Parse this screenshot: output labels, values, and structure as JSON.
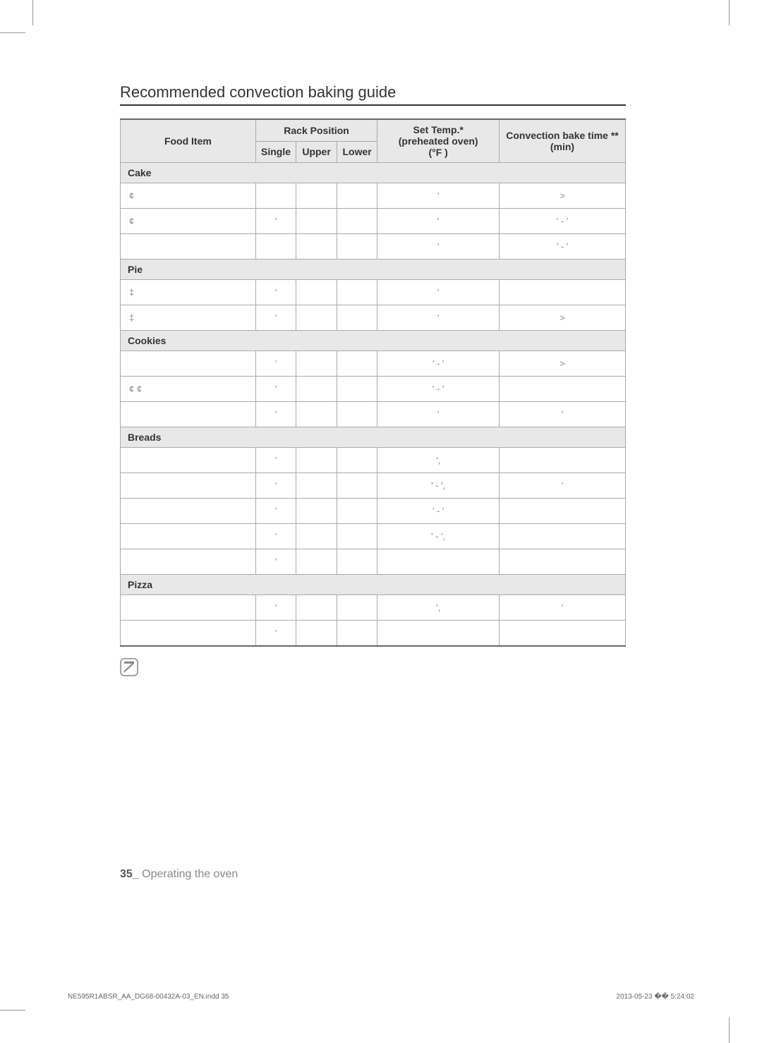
{
  "title": "Recommended convection baking guide",
  "headers": {
    "food": "Food Item",
    "rack": "Rack Position",
    "single": "Single",
    "upper": "Upper",
    "lower": "Lower",
    "temp": "Set Temp.*\n(preheated oven)\n(°F )",
    "time": "Convection bake time ** (min)"
  },
  "categories": [
    {
      "name": "Cake",
      "rows": [
        {
          "food": "¢",
          "single": "",
          "upper": "",
          "lower": "",
          "temp": "'",
          "time": ">"
        },
        {
          "food": "¢",
          "single": "'",
          "upper": "",
          "lower": "",
          "temp": "'",
          "time": "' - '"
        },
        {
          "food": "",
          "single": "",
          "upper": "",
          "lower": "",
          "temp": "'",
          "time": "' - '"
        }
      ]
    },
    {
      "name": "Pie",
      "rows": [
        {
          "food": "‡",
          "single": "'",
          "upper": "",
          "lower": "",
          "temp": "'",
          "time": ""
        },
        {
          "food": "‡",
          "single": "'",
          "upper": "",
          "lower": "",
          "temp": "'",
          "time": ">"
        }
      ]
    },
    {
      "name": "Cookies",
      "rows": [
        {
          "food": "",
          "single": "'",
          "upper": "",
          "lower": "",
          "temp": "' - '",
          "time": ">"
        },
        {
          "food": "¢    ¢",
          "single": "'",
          "upper": "",
          "lower": "",
          "temp": "' - '",
          "time": ""
        },
        {
          "food": "",
          "single": "'",
          "upper": "",
          "lower": "",
          "temp": "'",
          "time": "'"
        }
      ]
    },
    {
      "name": "Breads",
      "rows": [
        {
          "food": "",
          "single": "'",
          "upper": "",
          "lower": "",
          "temp": "',",
          "time": ""
        },
        {
          "food": "",
          "single": "'",
          "upper": "",
          "lower": "",
          "temp": "' - ',",
          "time": "'"
        },
        {
          "food": "",
          "single": "'",
          "upper": "",
          "lower": "",
          "temp": "' - '",
          "time": ""
        },
        {
          "food": "",
          "single": "'",
          "upper": "",
          "lower": "",
          "temp": "' - ',",
          "time": ""
        },
        {
          "food": "",
          "single": "'",
          "upper": "",
          "lower": "",
          "temp": "",
          "time": ""
        }
      ]
    },
    {
      "name": "Pizza",
      "rows": [
        {
          "food": "",
          "single": "'",
          "upper": "",
          "lower": "",
          "temp": "',",
          "time": "'"
        },
        {
          "food": "",
          "single": "'",
          "upper": "",
          "lower": "",
          "temp": "",
          "time": ""
        }
      ]
    }
  ],
  "footnotes": [
    "",
    "",
    ""
  ],
  "footer": {
    "pageNum": "35_",
    "section": "Operating the oven"
  },
  "printMeta": {
    "file": "NE595R1ABSR_AA_DG68-00432A-03_EN.indd   35",
    "timestamp": "2013-05-23   �� 5:24:02"
  },
  "colors": {
    "headerBg": "#e8e8e8",
    "border": "#aaaaaa",
    "textLight": "#888888"
  }
}
